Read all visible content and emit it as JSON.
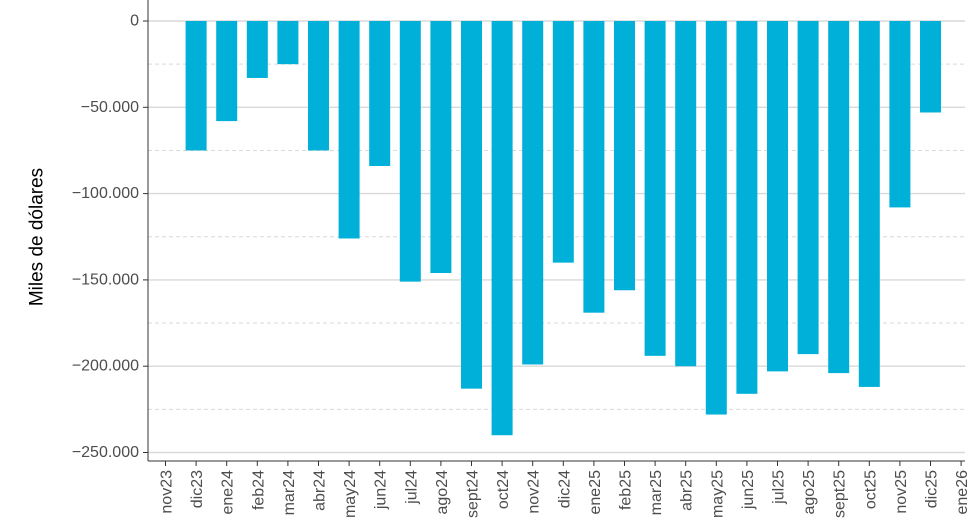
{
  "chart_data": {
    "type": "bar",
    "title": "",
    "xlabel": "",
    "ylabel": "Miles de dólares",
    "categories": [
      "nov23",
      "dic23",
      "ene24",
      "feb24",
      "mar24",
      "abr24",
      "may24",
      "jun24",
      "jul24",
      "ago24",
      "sept24",
      "oct24",
      "nov24",
      "dic24",
      "ene25",
      "feb25",
      "mar25",
      "abr25",
      "may25",
      "jun25",
      "jul25",
      "ago25",
      "sept25",
      "oct25",
      "nov25",
      "dic25",
      "ene26"
    ],
    "values": [
      0,
      -75000,
      -58000,
      -33000,
      -25000,
      -75000,
      -126000,
      -84000,
      -151000,
      -146000,
      -213000,
      -240000,
      -199000,
      -140000,
      -169000,
      -156000,
      -194000,
      -200000,
      -228000,
      -216000,
      -203000,
      -193000,
      -204000,
      -212000,
      -108000,
      -53000,
      0
    ],
    "ylim": [
      -250000,
      0
    ],
    "yticks": [
      0,
      -50000,
      -100000,
      -150000,
      -200000,
      -250000
    ],
    "ytick_labels": [
      "0",
      "−50.000",
      "−100.000",
      "−150.000",
      "−200.000",
      "−250.000"
    ],
    "grid": true,
    "bar_color": "#00b0d8",
    "grid_color": "#d9d9d9"
  }
}
